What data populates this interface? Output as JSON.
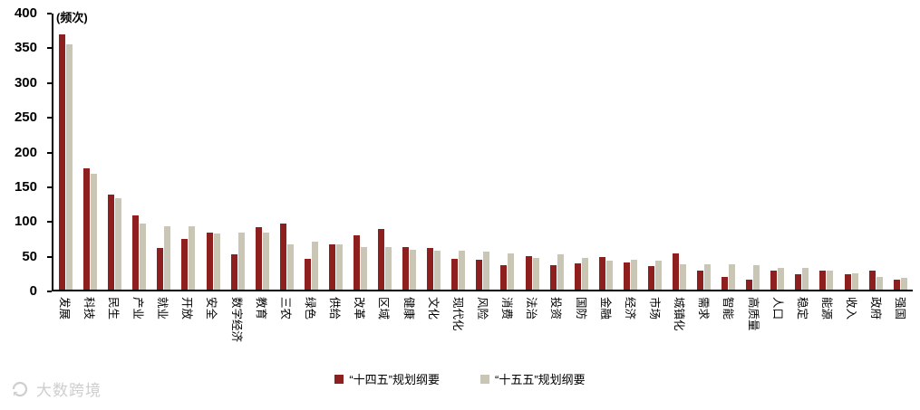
{
  "watermark": {
    "text": "大数跨境"
  },
  "chart_data": {
    "type": "bar",
    "title": "",
    "y_axis_title": "(频次)",
    "xlabel": "",
    "ylabel": "频次",
    "ylim": [
      0,
      400
    ],
    "y_ticks": [
      0,
      50,
      100,
      150,
      200,
      250,
      300,
      350,
      400
    ],
    "grid": false,
    "legend_position": "bottom",
    "categories": [
      "发展",
      "科技",
      "民生",
      "产业",
      "就业",
      "开放",
      "安全",
      "数字经济",
      "教育",
      "三农",
      "绿色",
      "供给",
      "改革",
      "区域",
      "健康",
      "文化",
      "现代化",
      "风险",
      "消费",
      "法治",
      "投资",
      "国防",
      "金融",
      "经济",
      "市场",
      "城镇化",
      "需求",
      "智能",
      "高质量",
      "人口",
      "稳定",
      "能源",
      "收入",
      "政府",
      "强国"
    ],
    "series": [
      {
        "name": "“十四五”规划纲要",
        "color": "#8E1F1F",
        "values": [
          370,
          176,
          138,
          108,
          61,
          74,
          82,
          51,
          90,
          96,
          44,
          65,
          79,
          88,
          62,
          61,
          45,
          43,
          35,
          48,
          35,
          38,
          47,
          40,
          34,
          53,
          27,
          18,
          14,
          28,
          22,
          27,
          22,
          27,
          14
        ]
      },
      {
        "name": "“十五五”规划纲要",
        "color": "#C9C6B6",
        "values": [
          355,
          168,
          133,
          96,
          92,
          92,
          81,
          82,
          83,
          66,
          70,
          66,
          62,
          62,
          58,
          56,
          56,
          55,
          53,
          46,
          51,
          46,
          42,
          43,
          42,
          37,
          37,
          37,
          36,
          31,
          32,
          28,
          24,
          19,
          17
        ]
      }
    ]
  }
}
